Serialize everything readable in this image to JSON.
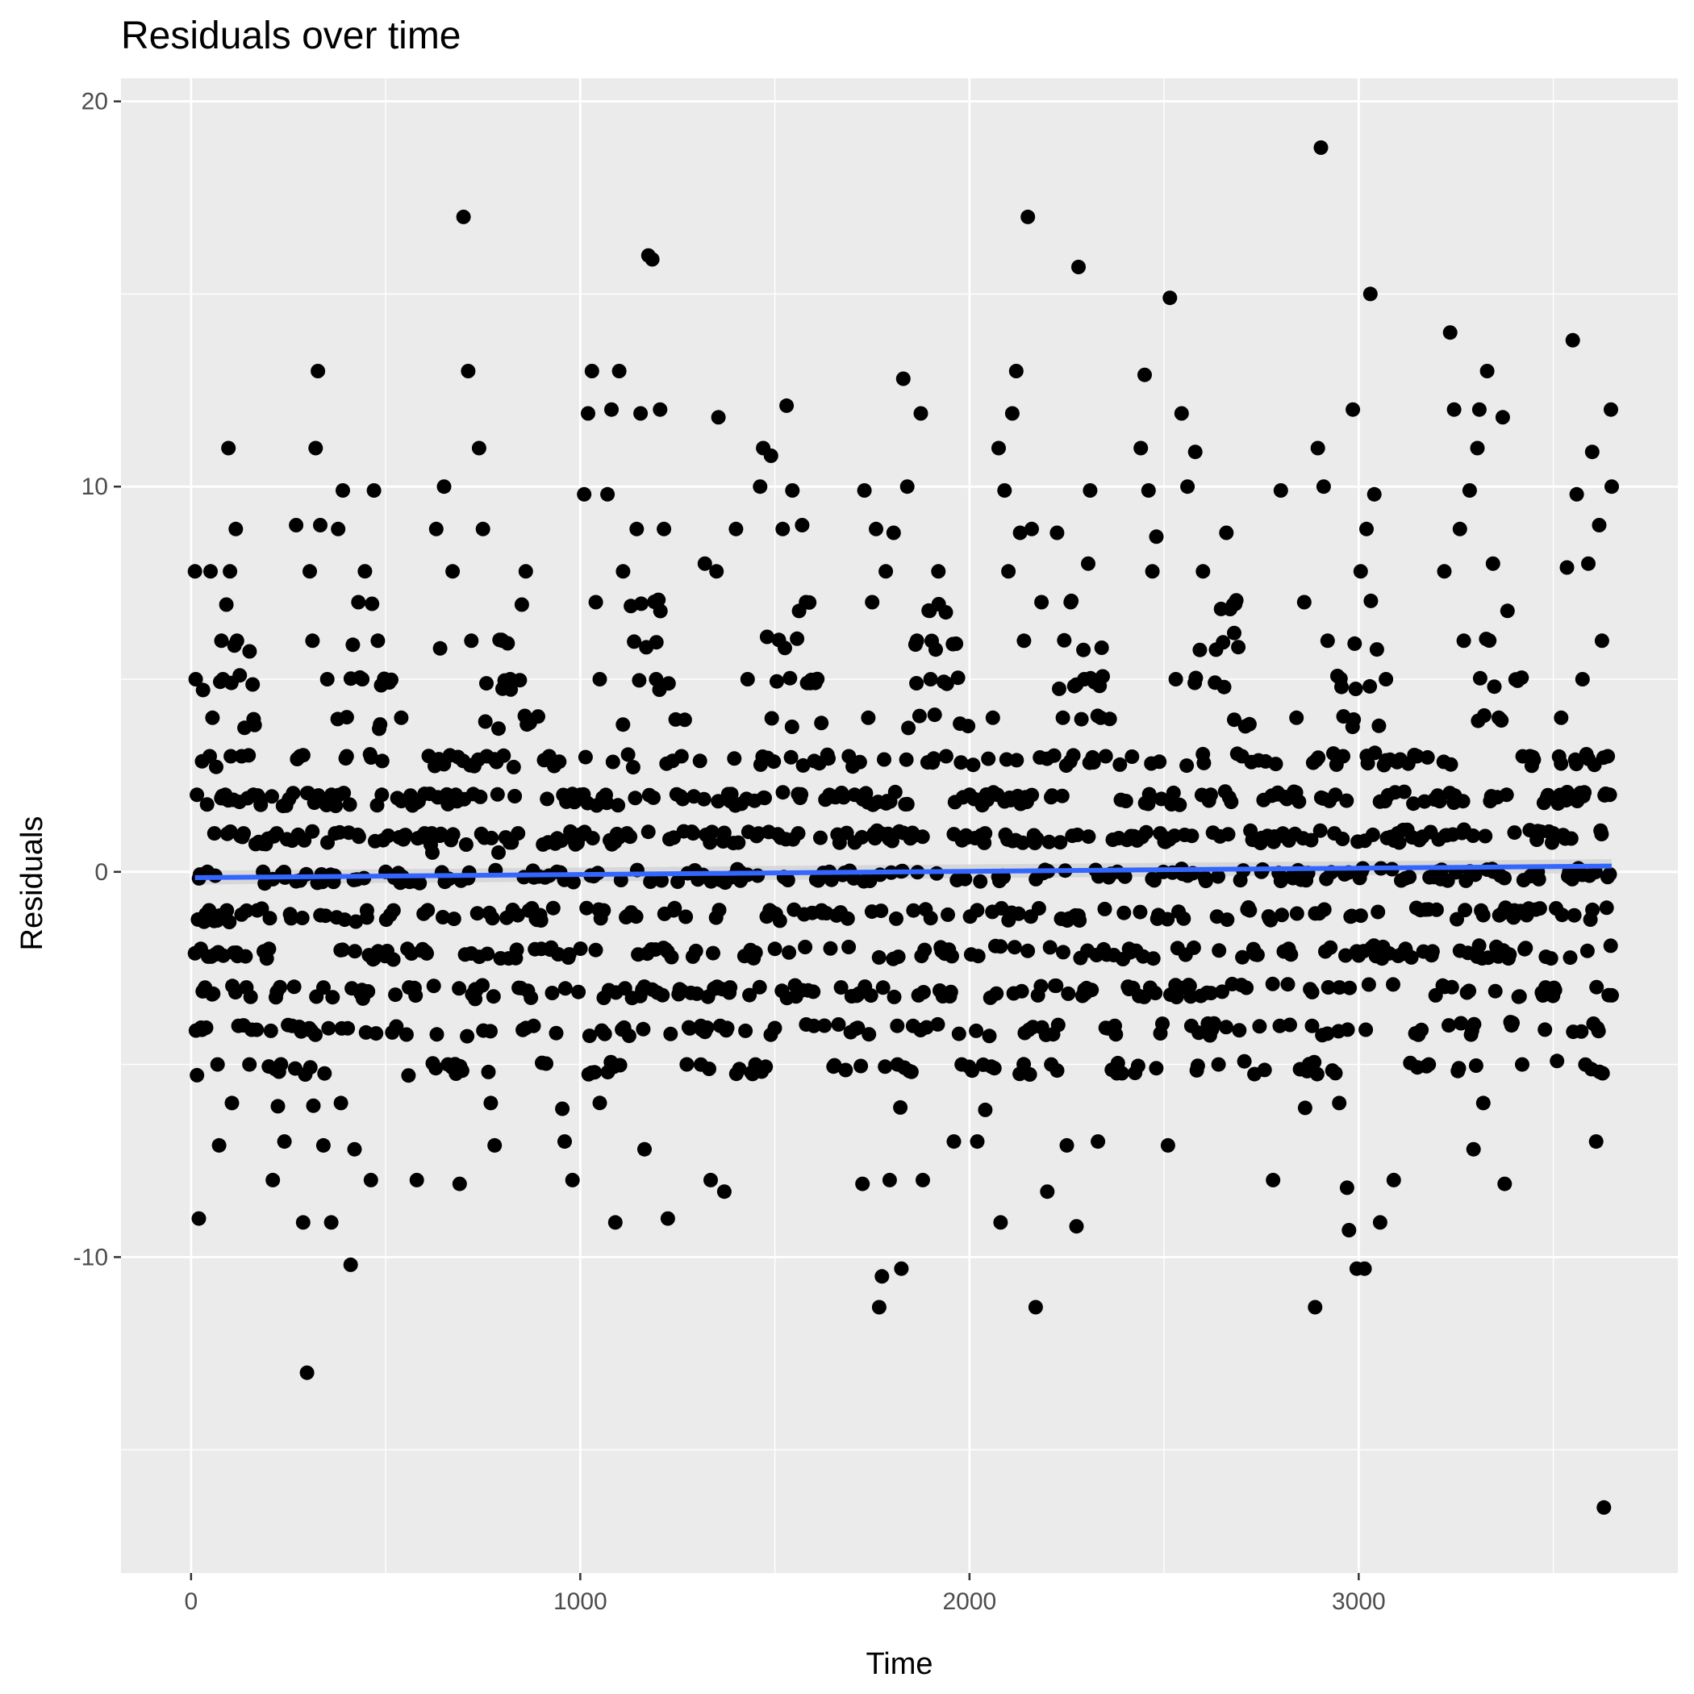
{
  "chart_data": {
    "type": "scatter",
    "title": "Residuals over time",
    "xlabel": "Time",
    "ylabel": "Residuals",
    "xlim": [
      -180,
      3820
    ],
    "ylim": [
      -18.2,
      20.6
    ],
    "x_ticks": [
      0,
      1000,
      2000,
      3000
    ],
    "x_tick_labels": [
      "0",
      "1000",
      "2000",
      "3000"
    ],
    "x_minor_ticks": [
      500,
      1500,
      2500,
      3500
    ],
    "y_ticks": [
      -10,
      0,
      10,
      20
    ],
    "y_tick_labels": [
      "-10",
      "0",
      "10",
      "20"
    ],
    "y_minor_ticks": [
      -15,
      -5,
      5,
      15
    ],
    "grid": true,
    "legend": "none",
    "colors": {
      "panel_background": "#ebebeb",
      "grid": "#ffffff",
      "points": "#000000",
      "trend_line": "#3366ff",
      "confidence_band": "#d4d4d4",
      "tick_label": "#4d4d4d"
    },
    "trend": {
      "method": "linear",
      "x": [
        10,
        3650
      ],
      "y": [
        -0.15,
        0.15
      ],
      "band_halfwidth": 0.18
    },
    "series": [
      {
        "values": [
          [
            10,
            7.8
          ],
          [
            12,
            5.0
          ],
          [
            15,
            2.0
          ],
          [
            20,
            -9.0
          ],
          [
            25,
            -2.0
          ],
          [
            28,
            -4.1
          ],
          [
            30,
            -3.1
          ],
          [
            38,
            -1.1
          ],
          [
            42,
            0.0
          ],
          [
            48,
            3.0
          ],
          [
            50,
            7.8
          ],
          [
            55,
            4.0
          ],
          [
            60,
            1.0
          ],
          [
            62,
            -0.1
          ],
          [
            68,
            -5.0
          ],
          [
            72,
            -7.1
          ],
          [
            78,
            6.0
          ],
          [
            82,
            5.0
          ],
          [
            88,
            2.0
          ],
          [
            92,
            -1.0
          ],
          [
            96,
            11.0
          ],
          [
            100,
            7.8
          ],
          [
            102,
            3.0
          ],
          [
            105,
            -6.0
          ],
          [
            110,
            -2.1
          ],
          [
            115,
            8.9
          ],
          [
            118,
            6.0
          ],
          [
            125,
            5.1
          ],
          [
            130,
            3.0
          ],
          [
            135,
            1.0
          ],
          [
            142,
            -3.0
          ],
          [
            150,
            -5.0
          ],
          [
            160,
            2.0
          ],
          [
            170,
            -1.0
          ],
          [
            185,
            0.0
          ],
          [
            200,
            -2.0
          ],
          [
            210,
            -8.0
          ],
          [
            220,
            1.0
          ],
          [
            240,
            -7.0
          ],
          [
            260,
            -4.0
          ],
          [
            270,
            9.0
          ],
          [
            280,
            3.0
          ],
          [
            288,
            -9.1
          ],
          [
            298,
            -13.0
          ],
          [
            305,
            7.8
          ],
          [
            312,
            6.0
          ],
          [
            320,
            11.0
          ],
          [
            326,
            13.0
          ],
          [
            332,
            9.0
          ],
          [
            340,
            -7.1
          ],
          [
            350,
            5.0
          ],
          [
            360,
            -9.1
          ],
          [
            370,
            1.0
          ],
          [
            378,
            8.9
          ],
          [
            385,
            -6.0
          ],
          [
            390,
            9.9
          ],
          [
            400,
            3.0
          ],
          [
            410,
            -10.2
          ],
          [
            420,
            -7.2
          ],
          [
            430,
            7.0
          ],
          [
            440,
            5.0
          ],
          [
            452,
            -1.0
          ],
          [
            462,
            -8.0
          ],
          [
            470,
            9.9
          ],
          [
            480,
            6.0
          ],
          [
            490,
            2.0
          ],
          [
            500,
            0.0
          ],
          [
            520,
            -1.0
          ],
          [
            540,
            4.0
          ],
          [
            560,
            -3.0
          ],
          [
            580,
            -8.0
          ],
          [
            600,
            1.0
          ],
          [
            620,
            0.5
          ],
          [
            630,
            8.9
          ],
          [
            640,
            5.8
          ],
          [
            650,
            10.0
          ],
          [
            660,
            -5.0
          ],
          [
            672,
            7.8
          ],
          [
            680,
            2.0
          ],
          [
            690,
            -8.1
          ],
          [
            700,
            17.0
          ],
          [
            712,
            13.0
          ],
          [
            720,
            6.0
          ],
          [
            730,
            -3.3
          ],
          [
            740,
            11.0
          ],
          [
            750,
            8.9
          ],
          [
            760,
            3.0
          ],
          [
            770,
            -6.0
          ],
          [
            780,
            -7.1
          ],
          [
            790,
            0.5
          ],
          [
            800,
            6.0
          ],
          [
            820,
            5.0
          ],
          [
            840,
            1.0
          ],
          [
            860,
            7.8
          ],
          [
            880,
            -4.0
          ],
          [
            900,
            -2.0
          ],
          [
            920,
            3.0
          ],
          [
            940,
            0.0
          ],
          [
            960,
            -7.0
          ],
          [
            980,
            -8.0
          ],
          [
            1000,
            2.0
          ],
          [
            1010,
            9.8
          ],
          [
            1020,
            11.9
          ],
          [
            1030,
            13.0
          ],
          [
            1040,
            7.0
          ],
          [
            1050,
            5.0
          ],
          [
            1060,
            -1.0
          ],
          [
            1070,
            9.8
          ],
          [
            1080,
            12.0
          ],
          [
            1090,
            -9.1
          ],
          [
            1100,
            13.0
          ],
          [
            1110,
            7.8
          ],
          [
            1120,
            1.0
          ],
          [
            1130,
            6.9
          ],
          [
            1145,
            8.9
          ],
          [
            1155,
            11.9
          ],
          [
            1165,
            -7.2
          ],
          [
            1175,
            16.0
          ],
          [
            1185,
            15.9
          ],
          [
            1195,
            5.0
          ],
          [
            1205,
            12.0
          ],
          [
            1215,
            8.9
          ],
          [
            1225,
            -9.0
          ],
          [
            1240,
            -1.0
          ],
          [
            1260,
            3.0
          ],
          [
            1290,
            1.0
          ],
          [
            1310,
            -4.0
          ],
          [
            1320,
            8.0
          ],
          [
            1335,
            -8.0
          ],
          [
            1350,
            7.8
          ],
          [
            1355,
            11.8
          ],
          [
            1370,
            -8.3
          ],
          [
            1385,
            -3.0
          ],
          [
            1400,
            8.9
          ],
          [
            1410,
            0.0
          ],
          [
            1430,
            5.0
          ],
          [
            1450,
            -5.0
          ],
          [
            1462,
            10.0
          ],
          [
            1470,
            11.0
          ],
          [
            1480,
            6.1
          ],
          [
            1490,
            10.8
          ],
          [
            1500,
            -2.0
          ],
          [
            1520,
            8.9
          ],
          [
            1530,
            12.1
          ],
          [
            1545,
            9.9
          ],
          [
            1560,
            1.0
          ],
          [
            1570,
            9.0
          ],
          [
            1580,
            7.0
          ],
          [
            1600,
            -4.0
          ],
          [
            1620,
            -1.0
          ],
          [
            1640,
            0.0
          ],
          [
            1670,
            -3.0
          ],
          [
            1690,
            3.0
          ],
          [
            1705,
            2.0
          ],
          [
            1725,
            -8.1
          ],
          [
            1730,
            9.9
          ],
          [
            1740,
            4.0
          ],
          [
            1750,
            7.0
          ],
          [
            1760,
            8.9
          ],
          [
            1768,
            -11.3
          ],
          [
            1775,
            -10.5
          ],
          [
            1785,
            7.8
          ],
          [
            1795,
            -8.0
          ],
          [
            1805,
            8.8
          ],
          [
            1815,
            -5.0
          ],
          [
            1825,
            -10.3
          ],
          [
            1830,
            12.8
          ],
          [
            1840,
            10.0
          ],
          [
            1855,
            -4.0
          ],
          [
            1865,
            6.0
          ],
          [
            1875,
            11.9
          ],
          [
            1880,
            -8.0
          ],
          [
            1900,
            5.0
          ],
          [
            1920,
            7.8
          ],
          [
            1940,
            3.0
          ],
          [
            1960,
            -7.0
          ],
          [
            1980,
            -5.0
          ],
          [
            2000,
            2.0
          ],
          [
            2020,
            -7.0
          ],
          [
            2040,
            1.0
          ],
          [
            2060,
            4.0
          ],
          [
            2075,
            11.0
          ],
          [
            2080,
            -9.1
          ],
          [
            2090,
            9.9
          ],
          [
            2100,
            7.8
          ],
          [
            2110,
            11.9
          ],
          [
            2120,
            13.0
          ],
          [
            2130,
            8.8
          ],
          [
            2140,
            6.0
          ],
          [
            2150,
            17.0
          ],
          [
            2160,
            8.9
          ],
          [
            2170,
            -11.3
          ],
          [
            2185,
            7.0
          ],
          [
            2200,
            -8.3
          ],
          [
            2210,
            -5.0
          ],
          [
            2225,
            8.8
          ],
          [
            2240,
            4.0
          ],
          [
            2250,
            -7.1
          ],
          [
            2260,
            7.0
          ],
          [
            2275,
            -9.2
          ],
          [
            2280,
            15.7
          ],
          [
            2295,
            5.0
          ],
          [
            2305,
            8.0
          ],
          [
            2310,
            9.9
          ],
          [
            2330,
            -7.0
          ],
          [
            2350,
            3.0
          ],
          [
            2380,
            0.0
          ],
          [
            2410,
            -2.0
          ],
          [
            2440,
            11.0
          ],
          [
            2450,
            12.9
          ],
          [
            2460,
            9.9
          ],
          [
            2470,
            7.8
          ],
          [
            2480,
            8.7
          ],
          [
            2490,
            1.0
          ],
          [
            2510,
            -7.1
          ],
          [
            2515,
            14.9
          ],
          [
            2530,
            5.0
          ],
          [
            2545,
            11.9
          ],
          [
            2560,
            10.0
          ],
          [
            2570,
            -4.0
          ],
          [
            2580,
            10.9
          ],
          [
            2600,
            7.8
          ],
          [
            2620,
            2.0
          ],
          [
            2640,
            -5.0
          ],
          [
            2660,
            8.8
          ],
          [
            2680,
            6.2
          ],
          [
            2700,
            3.0
          ],
          [
            2720,
            -1.0
          ],
          [
            2750,
            0.0
          ],
          [
            2780,
            -8.0
          ],
          [
            2800,
            9.9
          ],
          [
            2820,
            -2.0
          ],
          [
            2840,
            4.0
          ],
          [
            2860,
            7.0
          ],
          [
            2880,
            -4.0
          ],
          [
            2888,
            -11.3
          ],
          [
            2895,
            11.0
          ],
          [
            2903,
            18.8
          ],
          [
            2910,
            10.0
          ],
          [
            2920,
            6.0
          ],
          [
            2940,
            2.0
          ],
          [
            2950,
            -6.0
          ],
          [
            2960,
            3.0
          ],
          [
            2970,
            -8.2
          ],
          [
            2975,
            -9.3
          ],
          [
            2985,
            12.0
          ],
          [
            2995,
            -10.3
          ],
          [
            3005,
            7.8
          ],
          [
            3015,
            -10.3
          ],
          [
            3020,
            8.9
          ],
          [
            3030,
            15.0
          ],
          [
            3040,
            9.8
          ],
          [
            3055,
            -9.1
          ],
          [
            3070,
            5.0
          ],
          [
            3090,
            -8.0
          ],
          [
            3100,
            1.0
          ],
          [
            3120,
            -2.0
          ],
          [
            3150,
            3.0
          ],
          [
            3180,
            -5.0
          ],
          [
            3200,
            0.0
          ],
          [
            3220,
            7.8
          ],
          [
            3235,
            14.0
          ],
          [
            3245,
            12.0
          ],
          [
            3260,
            8.9
          ],
          [
            3270,
            6.0
          ],
          [
            3285,
            9.9
          ],
          [
            3295,
            -7.2
          ],
          [
            3305,
            11.0
          ],
          [
            3310,
            12.0
          ],
          [
            3320,
            -6.0
          ],
          [
            3330,
            13.0
          ],
          [
            3345,
            8.0
          ],
          [
            3360,
            4.0
          ],
          [
            3370,
            11.8
          ],
          [
            3375,
            -8.1
          ],
          [
            3380,
            2.0
          ],
          [
            3400,
            -1.0
          ],
          [
            3420,
            -5.0
          ],
          [
            3440,
            3.0
          ],
          [
            3460,
            0.0
          ],
          [
            3480,
            -3.0
          ],
          [
            3500,
            1.0
          ],
          [
            3520,
            4.0
          ],
          [
            3535,
            7.9
          ],
          [
            3550,
            13.8
          ],
          [
            3560,
            9.8
          ],
          [
            3575,
            5.0
          ],
          [
            3590,
            8.0
          ],
          [
            3600,
            10.9
          ],
          [
            3610,
            -7.0
          ],
          [
            3618,
            9.0
          ],
          [
            3625,
            6.0
          ],
          [
            3630,
            -16.5
          ],
          [
            3640,
            3.0
          ],
          [
            3645,
            2.0
          ],
          [
            3648,
            12.0
          ],
          [
            3650,
            10.0
          ]
        ]
      }
    ]
  }
}
